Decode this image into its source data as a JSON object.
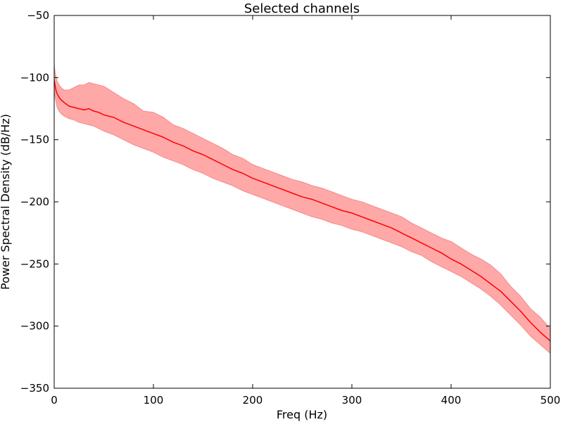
{
  "chart_data": {
    "type": "area",
    "title": "Selected channels",
    "xlabel": "Freq (Hz)",
    "ylabel": "Power Spectral Density (dB/Hz)",
    "xlim": [
      0,
      500
    ],
    "ylim": [
      -350,
      -50
    ],
    "xticks": [
      0,
      100,
      200,
      300,
      400,
      500
    ],
    "yticks": [
      -350,
      -300,
      -250,
      -200,
      -150,
      -100,
      -50
    ],
    "grid": false,
    "colors": {
      "mean_line": "#ff0000",
      "band_fill": "#ffa8a8",
      "band_edge": "#f38a8a"
    },
    "series": [
      {
        "role": "mean",
        "x": [
          0,
          1,
          2,
          3,
          5,
          7,
          10,
          15,
          20,
          25,
          30,
          35,
          40,
          45,
          50,
          60,
          70,
          80,
          90,
          100,
          110,
          120,
          130,
          140,
          150,
          160,
          170,
          180,
          190,
          200,
          210,
          220,
          230,
          240,
          250,
          260,
          270,
          280,
          290,
          300,
          310,
          320,
          330,
          340,
          350,
          360,
          370,
          380,
          390,
          400,
          410,
          420,
          430,
          440,
          450,
          460,
          470,
          480,
          490,
          500
        ],
        "y": [
          -102,
          -107,
          -111,
          -113,
          -116,
          -118,
          -120,
          -123,
          -124,
          -125,
          -126,
          -125,
          -127,
          -128,
          -130,
          -132,
          -136,
          -139,
          -142,
          -145,
          -148,
          -152,
          -155,
          -159,
          -162,
          -166,
          -170,
          -174,
          -177,
          -181,
          -184,
          -187,
          -190,
          -193,
          -196,
          -198,
          -201,
          -204,
          -207,
          -209,
          -212,
          -215,
          -218,
          -221,
          -225,
          -229,
          -233,
          -237,
          -241,
          -246,
          -250,
          -255,
          -260,
          -266,
          -272,
          -280,
          -288,
          -297,
          -305,
          -312
        ]
      },
      {
        "role": "upper",
        "x": [
          0,
          1,
          2,
          3,
          5,
          7,
          10,
          15,
          20,
          25,
          30,
          35,
          40,
          45,
          50,
          60,
          70,
          80,
          90,
          100,
          110,
          120,
          130,
          140,
          150,
          160,
          170,
          180,
          190,
          200,
          210,
          220,
          230,
          240,
          250,
          260,
          270,
          280,
          290,
          300,
          310,
          320,
          330,
          340,
          350,
          360,
          370,
          380,
          390,
          400,
          410,
          420,
          430,
          440,
          450,
          460,
          470,
          480,
          490,
          500
        ],
        "y": [
          -90,
          -96,
          -100,
          -103,
          -106,
          -108,
          -110,
          -110,
          -108,
          -106,
          -106,
          -104,
          -105,
          -106,
          -107,
          -112,
          -117,
          -121,
          -127,
          -128,
          -132,
          -138,
          -141,
          -145,
          -149,
          -153,
          -157,
          -162,
          -165,
          -170,
          -173,
          -176,
          -179,
          -182,
          -184,
          -187,
          -189,
          -192,
          -195,
          -198,
          -200,
          -203,
          -206,
          -209,
          -212,
          -217,
          -221,
          -225,
          -229,
          -232,
          -237,
          -242,
          -246,
          -251,
          -258,
          -268,
          -276,
          -286,
          -293,
          -302
        ]
      },
      {
        "role": "lower",
        "x": [
          0,
          1,
          2,
          3,
          5,
          7,
          10,
          15,
          20,
          25,
          30,
          35,
          40,
          45,
          50,
          60,
          70,
          80,
          90,
          100,
          110,
          120,
          130,
          140,
          150,
          160,
          170,
          180,
          190,
          200,
          210,
          220,
          230,
          240,
          250,
          260,
          270,
          280,
          290,
          300,
          310,
          320,
          330,
          340,
          350,
          360,
          370,
          380,
          390,
          400,
          410,
          420,
          430,
          440,
          450,
          460,
          470,
          480,
          490,
          500
        ],
        "y": [
          -110,
          -116,
          -120,
          -124,
          -127,
          -129,
          -131,
          -133,
          -134,
          -136,
          -137,
          -138,
          -139,
          -141,
          -143,
          -146,
          -150,
          -154,
          -157,
          -160,
          -164,
          -167,
          -170,
          -174,
          -177,
          -181,
          -184,
          -187,
          -191,
          -194,
          -197,
          -200,
          -203,
          -206,
          -209,
          -212,
          -214,
          -217,
          -219,
          -222,
          -224,
          -227,
          -230,
          -233,
          -236,
          -240,
          -243,
          -248,
          -252,
          -256,
          -260,
          -265,
          -270,
          -276,
          -283,
          -291,
          -299,
          -308,
          -315,
          -322
        ]
      }
    ]
  }
}
